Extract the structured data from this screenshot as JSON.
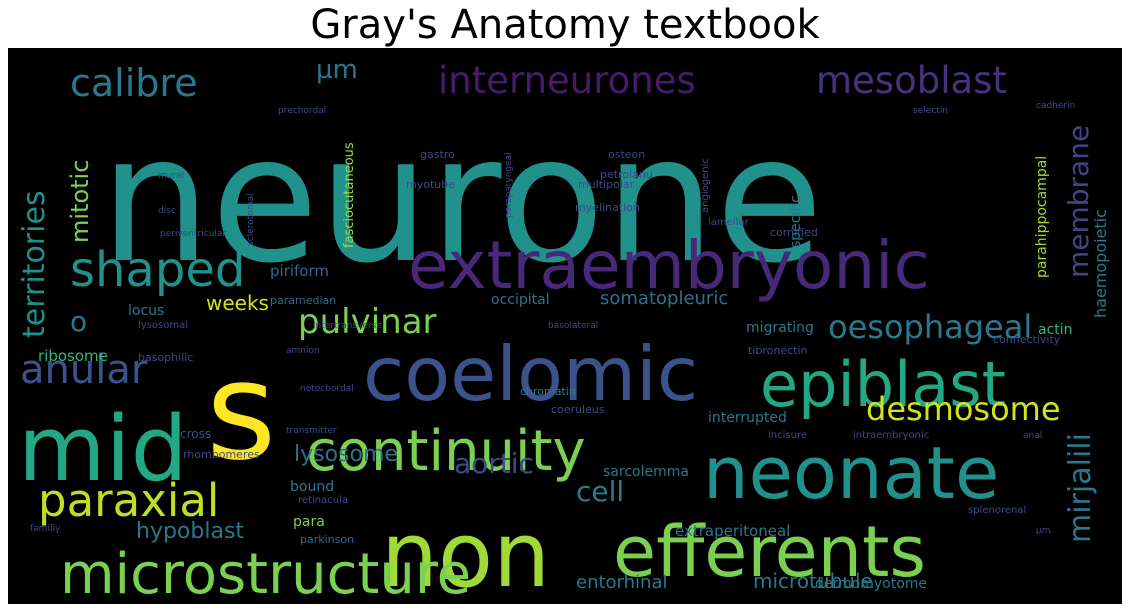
{
  "title": "Gray's Anatomy textbook",
  "words": [
    {
      "text": "neurone",
      "color": "#21918c"
    },
    {
      "text": "s",
      "color": "#fde725"
    },
    {
      "text": "non",
      "color": "#a0da39"
    },
    {
      "text": "extraembryonic",
      "color": "#482878"
    },
    {
      "text": "coelomic",
      "color": "#3b528b"
    },
    {
      "text": "mid",
      "color": "#22a884"
    },
    {
      "text": "efferents",
      "color": "#7ad151"
    },
    {
      "text": "neonate",
      "color": "#21918c"
    },
    {
      "text": "epiblast",
      "color": "#22a884"
    },
    {
      "text": "continuity",
      "color": "#7ad151"
    },
    {
      "text": "microstructure",
      "color": "#7ad151"
    },
    {
      "text": "interneurones",
      "color": "#481a6c"
    },
    {
      "text": "mesoblast",
      "color": "#46327e"
    },
    {
      "text": "calibre",
      "color": "#2a788e"
    },
    {
      "text": "shaped",
      "color": "#21918c"
    },
    {
      "text": "paraxial",
      "color": "#bddf26"
    },
    {
      "text": "anular",
      "color": "#3b528b"
    },
    {
      "text": "oesophageal",
      "color": "#2a788e"
    },
    {
      "text": "territories",
      "color": "#21918c"
    },
    {
      "text": "membrane",
      "color": "#414487"
    },
    {
      "text": "mirjalili",
      "color": "#2a788e"
    },
    {
      "text": "pulvinar",
      "color": "#7ad151"
    },
    {
      "text": "desmosome",
      "color": "#d2e21b"
    },
    {
      "text": "aortic",
      "color": "#3e4989"
    },
    {
      "text": "lysosome",
      "color": "#2c728e"
    },
    {
      "text": "cell",
      "color": "#287c8e"
    },
    {
      "text": "mitotic",
      "color": "#7ad151"
    },
    {
      "text": "µm",
      "color": "#2a788e"
    },
    {
      "text": "o",
      "color": "#2a788e"
    },
    {
      "text": "somatopleuric",
      "color": "#2c728e"
    },
    {
      "text": "hypoblast",
      "color": "#2a788e"
    },
    {
      "text": "entorhinal",
      "color": "#2a788e"
    },
    {
      "text": "microtubule",
      "color": "#2a788e"
    },
    {
      "text": "haemopoietic",
      "color": "#2a788e"
    },
    {
      "text": "weeks",
      "color": "#d2e21b"
    },
    {
      "text": "parahippocampal",
      "color": "#a0da39"
    },
    {
      "text": "piriform",
      "color": "#31688e"
    },
    {
      "text": "occipital",
      "color": "#2c728e"
    },
    {
      "text": "specific",
      "color": "#2a788e"
    },
    {
      "text": "migrating",
      "color": "#2a788e"
    },
    {
      "text": "extraperitoneal",
      "color": "#2a788e"
    },
    {
      "text": "sarcolemma",
      "color": "#2a788e"
    },
    {
      "text": "interrupted",
      "color": "#2a788e"
    },
    {
      "text": "ribosome",
      "color": "#35b779"
    },
    {
      "text": "dermomyotome",
      "color": "#2a788e"
    },
    {
      "text": "chromatin",
      "color": "#2a788e"
    },
    {
      "text": "fasciocutaneous",
      "color": "#a0da39"
    },
    {
      "text": "actin",
      "color": "#35b779"
    },
    {
      "text": "paramedian",
      "color": "#31688e"
    },
    {
      "text": "locus",
      "color": "#2a788e"
    },
    {
      "text": "bound",
      "color": "#2a788e"
    },
    {
      "text": "para",
      "color": "#7ad151"
    },
    {
      "text": "parkinson",
      "color": "#31688e"
    },
    {
      "text": "myotube",
      "color": "#3e4989"
    },
    {
      "text": "multipolar",
      "color": "#3e4989"
    },
    {
      "text": "myelination",
      "color": "#3e4989"
    },
    {
      "text": "osteon",
      "color": "#3e4989"
    },
    {
      "text": "petrolanu",
      "color": "#3e4989"
    },
    {
      "text": "connectivity",
      "color": "#3e4989"
    },
    {
      "text": "tibronectin",
      "color": "#3e4989"
    },
    {
      "text": "incisure",
      "color": "#3e4989"
    },
    {
      "text": "intraembryonic",
      "color": "#3e4989"
    },
    {
      "text": "cornified",
      "color": "#3e4989"
    },
    {
      "text": "basolateral",
      "color": "#3e4989"
    },
    {
      "text": "angiogenic",
      "color": "#3e4989"
    },
    {
      "text": "lamellar",
      "color": "#3e4989"
    },
    {
      "text": "coeruleus",
      "color": "#3e4989"
    },
    {
      "text": "notochordal",
      "color": "#3e4989"
    },
    {
      "text": "sclerotomal",
      "color": "#3e4989"
    },
    {
      "text": "paraparyngeal",
      "color": "#3e4989"
    },
    {
      "text": "gastro",
      "color": "#3e4989"
    },
    {
      "text": "prechordal",
      "color": "#3e4989"
    },
    {
      "text": "mural",
      "color": "#3e4989"
    },
    {
      "text": "disc",
      "color": "#3e4989"
    },
    {
      "text": "periventricular",
      "color": "#3e4989"
    },
    {
      "text": "lysosomal",
      "color": "#3e4989"
    },
    {
      "text": "intertransverse",
      "color": "#3e4989"
    },
    {
      "text": "amnion",
      "color": "#3e4989"
    },
    {
      "text": "basophilic",
      "color": "#3e4989"
    },
    {
      "text": "cross",
      "color": "#3e4989"
    },
    {
      "text": "rhombomeres",
      "color": "#3e4989"
    },
    {
      "text": "transmitter",
      "color": "#3e4989"
    },
    {
      "text": "retinacula",
      "color": "#3e4989"
    },
    {
      "text": "familiy",
      "color": "#3e4989"
    },
    {
      "text": "splenorenal",
      "color": "#3e4989"
    },
    {
      "text": "anal",
      "color": "#3e4989"
    },
    {
      "text": "selectin",
      "color": "#3e4989"
    },
    {
      "text": "cadherin",
      "color": "#3e4989"
    },
    {
      "text": "µm",
      "color": "#3e4989"
    }
  ]
}
